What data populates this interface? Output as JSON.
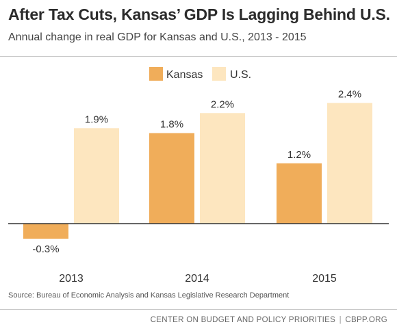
{
  "header": {
    "title": "After Tax Cuts, Kansas’ GDP Is Lagging Behind U.S.",
    "subtitle": "Annual change in real GDP for Kansas and U.S., 2013 - 2015"
  },
  "footer": {
    "source": "Source: Bureau of Economic Analysis and Kansas Legislative Research Department",
    "credit_org": "CENTER ON BUDGET AND POLICY PRIORITIES",
    "credit_sep": "|",
    "credit_site": "CBPP.ORG"
  },
  "colors": {
    "kansas": "#f0ad5a",
    "us": "#fde6bf",
    "axis": "#333333"
  },
  "chart_data": {
    "type": "bar",
    "title": "After Tax Cuts, Kansas’ GDP Is Lagging Behind U.S.",
    "subtitle": "Annual change in real GDP for Kansas and U.S., 2013 - 2015",
    "categories": [
      "2013",
      "2014",
      "2015"
    ],
    "series": [
      {
        "name": "Kansas",
        "values": [
          -0.3,
          1.8,
          1.2
        ],
        "labels": [
          "-0.3%",
          "1.8%",
          "1.2%"
        ]
      },
      {
        "name": "U.S.",
        "values": [
          1.9,
          2.2,
          2.4
        ],
        "labels": [
          "1.9%",
          "2.2%",
          "2.4%"
        ]
      }
    ],
    "ylim": [
      -0.3,
      2.4
    ],
    "xlabel": "",
    "ylabel": "",
    "grid": false,
    "legend": "top-center"
  }
}
